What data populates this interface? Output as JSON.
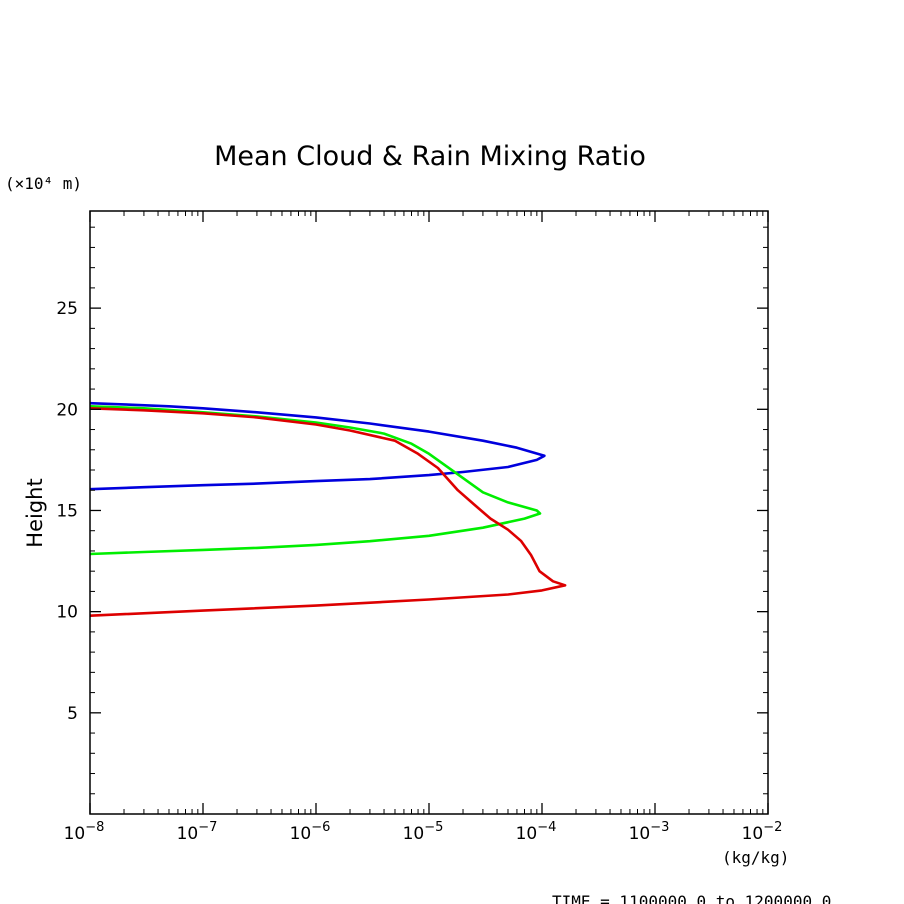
{
  "chart_data": {
    "type": "line",
    "title": "Mean Cloud & Rain Mixing Ratio",
    "ylabel": "Height",
    "y_unit": "(×10⁴ m)",
    "x_unit": "(kg/kg)",
    "xscale": "log",
    "xlim": [
      1e-08,
      0.01
    ],
    "ylim": [
      0,
      29.8
    ],
    "grid": false,
    "x_ticks": [
      {
        "value": 1e-08,
        "label": "10",
        "exp": "−8"
      },
      {
        "value": 1e-07,
        "label": "10",
        "exp": "−7"
      },
      {
        "value": 1e-06,
        "label": "10",
        "exp": "−6"
      },
      {
        "value": 1e-05,
        "label": "10",
        "exp": "−5"
      },
      {
        "value": 0.0001,
        "label": "10",
        "exp": "−4"
      },
      {
        "value": 0.001,
        "label": "10",
        "exp": "−3"
      },
      {
        "value": 0.01,
        "label": "10",
        "exp": "−2"
      }
    ],
    "y_ticks": [
      5,
      10,
      15,
      20,
      25
    ],
    "footer": "TIME = 1100000.0 to 1200000.0",
    "series": [
      {
        "color": "#0000dd",
        "points": [
          [
            1e-08,
            20.3
          ],
          [
            2e-08,
            20.24
          ],
          [
            5e-08,
            20.15
          ],
          [
            1e-07,
            20.05
          ],
          [
            3e-07,
            19.85
          ],
          [
            1e-06,
            19.6
          ],
          [
            3e-06,
            19.3
          ],
          [
            1e-05,
            18.9
          ],
          [
            3e-05,
            18.45
          ],
          [
            6e-05,
            18.1
          ],
          [
            0.000105,
            17.7
          ],
          [
            9e-05,
            17.5
          ],
          [
            5e-05,
            17.15
          ],
          [
            2e-05,
            16.9
          ],
          [
            1e-05,
            16.75
          ],
          [
            3e-06,
            16.55
          ],
          [
            1e-06,
            16.45
          ],
          [
            3e-07,
            16.33
          ],
          [
            1e-07,
            16.25
          ],
          [
            3e-08,
            16.15
          ],
          [
            1e-08,
            16.05
          ]
        ]
      },
      {
        "color": "#00ee00",
        "points": [
          [
            1e-08,
            20.15
          ],
          [
            3e-08,
            20.05
          ],
          [
            1e-07,
            19.85
          ],
          [
            3e-07,
            19.65
          ],
          [
            1e-06,
            19.35
          ],
          [
            2e-06,
            19.1
          ],
          [
            4e-06,
            18.8
          ],
          [
            7e-06,
            18.3
          ],
          [
            1e-05,
            17.8
          ],
          [
            2e-05,
            16.6
          ],
          [
            3e-05,
            15.9
          ],
          [
            5e-05,
            15.4
          ],
          [
            9e-05,
            15.0
          ],
          [
            9.6e-05,
            14.85
          ],
          [
            7e-05,
            14.6
          ],
          [
            3e-05,
            14.15
          ],
          [
            1e-05,
            13.75
          ],
          [
            3e-06,
            13.48
          ],
          [
            1e-06,
            13.3
          ],
          [
            3e-07,
            13.15
          ],
          [
            1e-07,
            13.05
          ],
          [
            3e-08,
            12.95
          ],
          [
            1e-08,
            12.85
          ]
        ]
      },
      {
        "color": "#dd0000",
        "points": [
          [
            1e-08,
            20.05
          ],
          [
            3e-08,
            19.95
          ],
          [
            1e-07,
            19.8
          ],
          [
            3e-07,
            19.6
          ],
          [
            1e-06,
            19.25
          ],
          [
            2e-06,
            18.95
          ],
          [
            5e-06,
            18.45
          ],
          [
            8e-06,
            17.8
          ],
          [
            1.2e-05,
            17.1
          ],
          [
            1.8e-05,
            16.0
          ],
          [
            2.5e-05,
            15.3
          ],
          [
            3.5e-05,
            14.6
          ],
          [
            5e-05,
            14.05
          ],
          [
            6.5e-05,
            13.5
          ],
          [
            8e-05,
            12.8
          ],
          [
            9.5e-05,
            12.0
          ],
          [
            0.000125,
            11.5
          ],
          [
            0.00016,
            11.3
          ],
          [
            0.0001,
            11.05
          ],
          [
            5e-05,
            10.85
          ],
          [
            1e-05,
            10.6
          ],
          [
            1e-06,
            10.3
          ],
          [
            1e-07,
            10.05
          ],
          [
            1e-08,
            9.8
          ]
        ]
      }
    ]
  }
}
